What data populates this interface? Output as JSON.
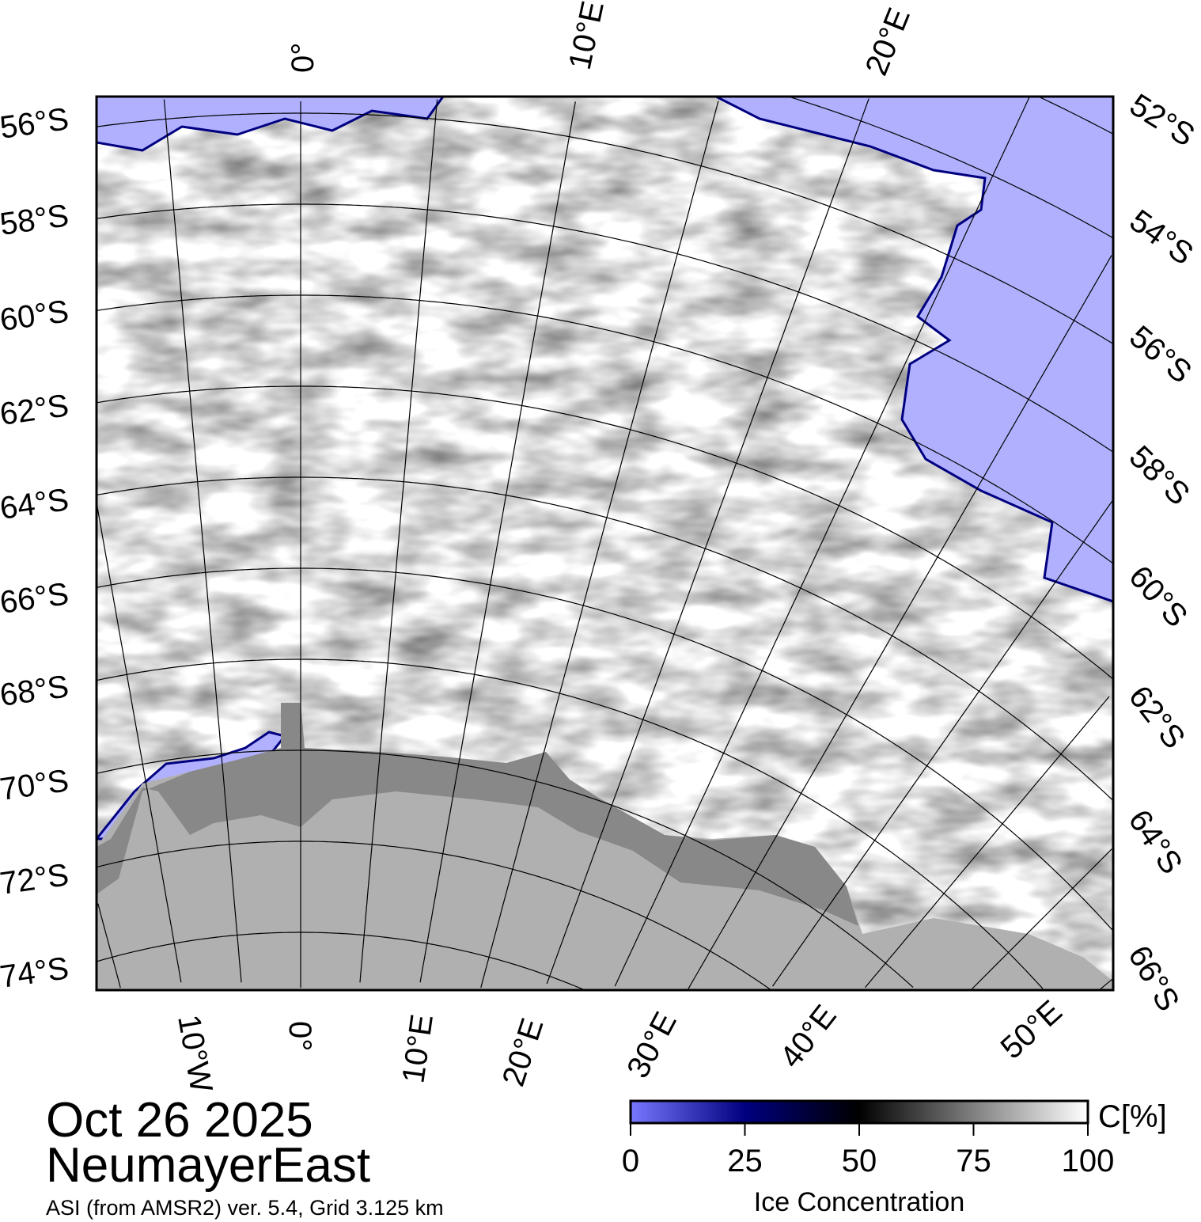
{
  "map": {
    "date": "Oct 26 2025",
    "region": "NeumayerEast",
    "source": "ASI (from AMSR2) ver. 5.4,  Grid 3.125 km",
    "colors": {
      "open_water": "#b0b0ff",
      "land": "#b0b0b0",
      "ice_shelf": "#888888",
      "ice": "#ffffff"
    },
    "top_labels": [
      "0°",
      "10°E",
      "20°E"
    ],
    "bottom_labels": [
      "10°W",
      "0°",
      "10°E",
      "20°E",
      "30°E",
      "40°E",
      "50°E"
    ],
    "left_labels": [
      "56°S",
      "58°S",
      "60°S",
      "62°S",
      "64°S",
      "66°S",
      "68°S",
      "70°S",
      "72°S",
      "74°S"
    ],
    "right_labels": [
      "52°S",
      "54°S",
      "56°S",
      "58°S",
      "60°S",
      "62°S",
      "64°S",
      "66°S"
    ]
  },
  "legend": {
    "title": "Ice Concentration",
    "unit": "C[%]",
    "ticks": [
      "0",
      "25",
      "50",
      "75",
      "100"
    ],
    "range": [
      0,
      100
    ],
    "color_stops": [
      "#7878ff",
      "#000080",
      "#000000",
      "#ffffff"
    ]
  }
}
